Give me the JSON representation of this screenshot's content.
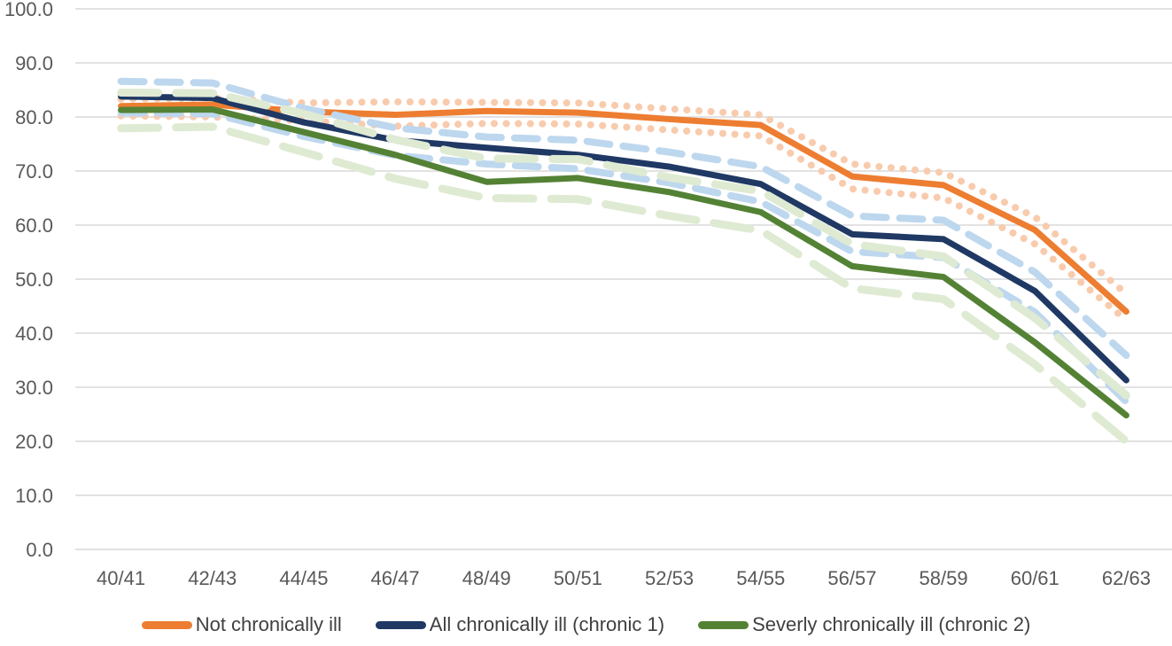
{
  "chart_data": {
    "type": "line",
    "categories": [
      "40/41",
      "42/43",
      "44/45",
      "46/47",
      "48/49",
      "50/51",
      "52/53",
      "54/55",
      "56/57",
      "58/59",
      "60/61",
      "62/63"
    ],
    "ylim": [
      0,
      100
    ],
    "y_tick_step": 10,
    "y_ticks": [
      "0.0",
      "10.0",
      "20.0",
      "30.0",
      "40.0",
      "50.0",
      "60.0",
      "70.0",
      "80.0",
      "90.0",
      "100.0"
    ],
    "grid": true,
    "legend_position": "bottom",
    "series": [
      {
        "name": "Not chronically ill",
        "type": "main",
        "color": "#ED7D31",
        "dash": "solid",
        "values": [
          82.0,
          82.3,
          81.0,
          80.4,
          81.1,
          80.8,
          79.6,
          78.5,
          69.0,
          67.4,
          59.1,
          44.0
        ]
      },
      {
        "name": "Not chronically ill",
        "type": "ci-upper",
        "color": "#F8CBAD",
        "dash": "dotted",
        "values": [
          83.3,
          83.5,
          82.6,
          82.8,
          82.7,
          82.6,
          81.5,
          80.4,
          71.3,
          69.7,
          61.5,
          47.3
        ]
      },
      {
        "name": "Not chronically ill",
        "type": "ci-lower",
        "color": "#F8CBAD",
        "dash": "dotted",
        "values": [
          80.2,
          80.0,
          79.3,
          78.3,
          78.8,
          78.7,
          77.6,
          76.5,
          66.7,
          65.0,
          56.5,
          42.4
        ]
      },
      {
        "name": "All chronically ill (chronic 1)",
        "type": "main",
        "color": "#1F3864",
        "dash": "solid",
        "values": [
          83.8,
          83.5,
          79.0,
          75.7,
          74.3,
          73.0,
          70.8,
          67.6,
          58.3,
          57.4,
          47.8,
          31.3
        ]
      },
      {
        "name": "All chronically ill (chronic 1)",
        "type": "ci-upper",
        "color": "#BDD7EE",
        "dash": "dashed",
        "values": [
          86.6,
          86.3,
          81.6,
          78.0,
          76.3,
          75.7,
          73.5,
          70.8,
          61.7,
          60.9,
          51.3,
          35.9
        ]
      },
      {
        "name": "All chronically ill (chronic 1)",
        "type": "ci-lower",
        "color": "#BDD7EE",
        "dash": "dashed",
        "values": [
          80.8,
          80.6,
          76.4,
          72.9,
          71.3,
          70.4,
          67.8,
          64.3,
          55.1,
          54.0,
          43.9,
          27.3
        ]
      },
      {
        "name": "Severly chronically ill (chronic 2)",
        "type": "main",
        "color": "#548235",
        "dash": "solid",
        "values": [
          81.3,
          81.4,
          77.2,
          73.0,
          68.0,
          68.7,
          66.1,
          62.4,
          52.4,
          50.4,
          38.3,
          24.8
        ]
      },
      {
        "name": "Severly chronically ill (chronic 2)",
        "type": "ci-upper",
        "color": "#DFEAD3",
        "dash": "long-dash",
        "values": [
          84.5,
          84.4,
          80.6,
          75.8,
          72.3,
          72.2,
          68.8,
          66.3,
          56.5,
          54.2,
          42.8,
          28.5
        ]
      },
      {
        "name": "Severly chronically ill (chronic 2)",
        "type": "ci-lower",
        "color": "#DFEAD3",
        "dash": "long-dash",
        "values": [
          77.9,
          78.2,
          73.5,
          68.6,
          65.0,
          64.8,
          61.7,
          59.0,
          48.3,
          46.3,
          34.2,
          20.0
        ]
      }
    ]
  },
  "style": {
    "gridline_color": "#D9D9D9",
    "tick_label_color": "#595959",
    "legend_label_color": "#404040"
  }
}
